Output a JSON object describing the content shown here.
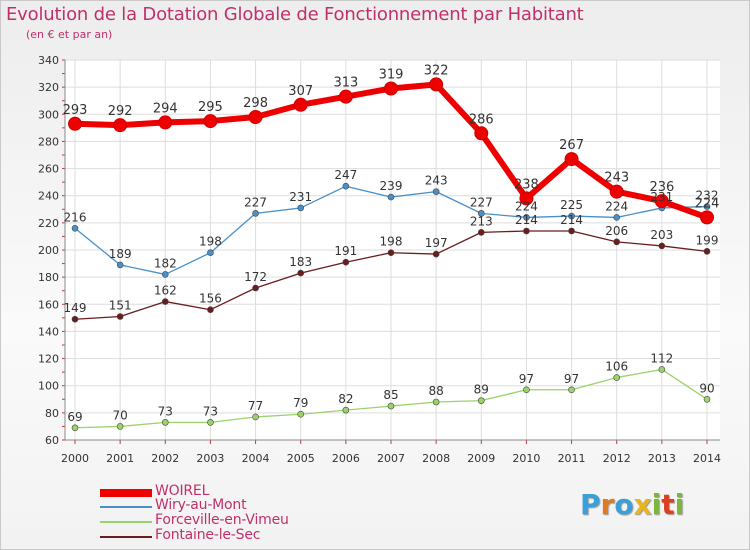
{
  "title": "Evolution de la Dotation Globale de Fonctionnement par Habitant",
  "subtitle": "(en € et par an)",
  "logo": {
    "text": "Proxiti",
    "letters": [
      "P",
      "r",
      "o",
      "x",
      "i",
      "t",
      "i"
    ],
    "colors": [
      "#3aa0d8",
      "#e07b1f",
      "#3aa0d8",
      "#e8b51d",
      "#7cb63b",
      "#d9401f",
      "#7cb63b"
    ]
  },
  "chart_data": {
    "type": "line",
    "title": "Evolution de la Dotation Globale de Fonctionnement par Habitant",
    "subtitle": "(en € et par an)",
    "xlabel": "",
    "ylabel": "",
    "ylim": [
      60,
      340
    ],
    "yticks": [
      60,
      80,
      100,
      120,
      140,
      160,
      180,
      200,
      220,
      240,
      260,
      280,
      300,
      320,
      340
    ],
    "categories": [
      "2000",
      "2001",
      "2002",
      "2003",
      "2004",
      "2005",
      "2006",
      "2007",
      "2008",
      "2009",
      "2010",
      "2011",
      "2012",
      "2013",
      "2014"
    ],
    "grid": true,
    "legend": "bottom-left",
    "series": [
      {
        "name": "WOIREL",
        "color": "#ee0000",
        "values": [
          293,
          292,
          294,
          295,
          298,
          307,
          313,
          319,
          322,
          286,
          238,
          267,
          243,
          236,
          224
        ]
      },
      {
        "name": "Wiry-au-Mont",
        "color": "#4a90c8",
        "values": [
          216,
          189,
          182,
          198,
          227,
          231,
          247,
          239,
          243,
          227,
          224,
          225,
          224,
          231,
          232
        ]
      },
      {
        "name": "Forceville-en-Vimeu",
        "color": "#9ad36a",
        "values": [
          69,
          70,
          73,
          73,
          77,
          79,
          82,
          85,
          88,
          89,
          97,
          97,
          106,
          112,
          90
        ]
      },
      {
        "name": "Fontaine-le-Sec",
        "color": "#6b1c1c",
        "values": [
          149,
          151,
          162,
          156,
          172,
          183,
          191,
          198,
          197,
          213,
          214,
          214,
          206,
          203,
          199
        ]
      }
    ]
  }
}
